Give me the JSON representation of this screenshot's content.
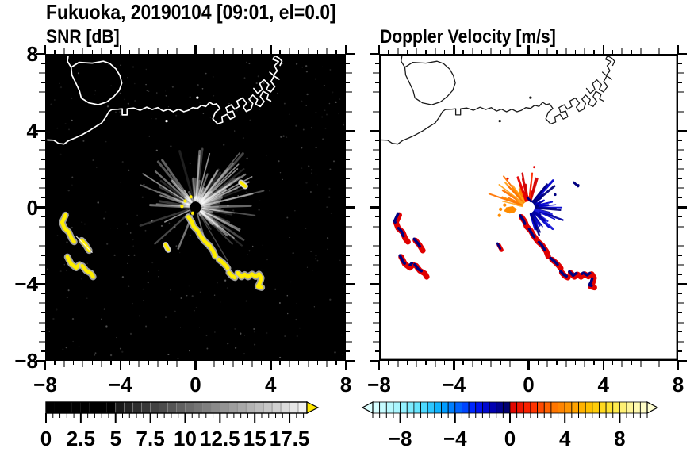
{
  "title": "Fukuoka, 20190104 [09:01, el=0.0]",
  "panels": {
    "snr": {
      "heading": "SNR [dB]"
    },
    "doppler": {
      "heading": "Doppler Velocity [m/s]"
    }
  },
  "axes": {
    "x_ticks": [
      "−8",
      "−4",
      "0",
      "4",
      "8"
    ],
    "x_tick_values": [
      -8,
      -4,
      0,
      4,
      8
    ],
    "y_ticks": [
      "8",
      "4",
      "0",
      "−4",
      "−8"
    ],
    "y_tick_values": [
      8,
      4,
      0,
      -4,
      -8
    ],
    "range": [
      -8,
      8
    ],
    "minor_step": 0.5,
    "medium_step": 1,
    "major_step": 4
  },
  "colorbars": {
    "snr": {
      "labels": [
        "0",
        "2.5",
        "5",
        "7.5",
        "10",
        "12.5",
        "15",
        "17.5"
      ],
      "label_values": [
        0,
        2.5,
        5,
        7.5,
        10,
        12.5,
        15,
        17.5
      ],
      "min": 0,
      "max": 18.75,
      "segments": 30,
      "solid_black_upto": 5,
      "scheme": "grayscale black to white",
      "over_arrow_color": "#FFE800"
    },
    "doppler": {
      "labels": [
        "−8",
        "−4",
        "0",
        "4",
        "8"
      ],
      "label_values": [
        -8,
        -4,
        0,
        4,
        8
      ],
      "min": -10,
      "max": 10,
      "segments": 40,
      "under_arrow_color": "#DCFFFF",
      "over_arrow_color": "#FFFFD2",
      "neg_stops": [
        [
          0,
          "#DCFFFF"
        ],
        [
          0.18,
          "#A8F6FF"
        ],
        [
          0.35,
          "#5CE2FF"
        ],
        [
          0.5,
          "#00AAFF"
        ],
        [
          0.63,
          "#0060FF"
        ],
        [
          0.75,
          "#0018FF"
        ],
        [
          0.87,
          "#0000B4"
        ],
        [
          1,
          "#000060"
        ]
      ],
      "pos_stops": [
        [
          0,
          "#DC0000"
        ],
        [
          0.15,
          "#FF2800"
        ],
        [
          0.3,
          "#FF6E00"
        ],
        [
          0.45,
          "#FF9C00"
        ],
        [
          0.6,
          "#FFC800"
        ],
        [
          0.75,
          "#FFE83C"
        ],
        [
          0.88,
          "#FFF59B"
        ],
        [
          1,
          "#FFFFD2"
        ]
      ]
    }
  },
  "chart_data": {
    "type": "heatmap",
    "title": "Fukuoka, 20190104 [09:01, el=0.0]",
    "site": "Fukuoka",
    "date": "20190104",
    "time": "09:01",
    "elevation_deg": 0.0,
    "x_range_km": [
      -8,
      8
    ],
    "y_range_km": [
      -8,
      8
    ],
    "radar_site_xy": [
      0,
      0
    ],
    "panels": [
      {
        "name": "SNR",
        "units": "dB",
        "background": "#000000",
        "colorbar_range": [
          0,
          18.75
        ],
        "echo_note": "yellow trails = saturated echoes > 18.75 dB with gray fringes; gray radial fan = ground clutter around radar site"
      },
      {
        "name": "Doppler Velocity",
        "units": "m/s",
        "background": "#FFFFFF",
        "colorbar_range": [
          -10,
          10
        ],
        "echo_note": "same trails as SNR: red ~ +1 m/s with navy ~ -1 m/s edges; fan: orange +3..6 m/s NW, red +1..3 m/s N, blue/navy -0.5..-3 m/s E-SE"
      }
    ],
    "map": {
      "region": "Hakata Bay coastline, Fukuoka",
      "coastline": {
        "island": [
          [
            -4.9,
            7.62
          ],
          [
            -5.5,
            7.52
          ],
          [
            -6.2,
            7.56
          ],
          [
            -6.62,
            7.3
          ],
          [
            -6.58,
            6.9
          ],
          [
            -6.38,
            6.5
          ],
          [
            -6.18,
            6.08
          ],
          [
            -6.08,
            5.7
          ],
          [
            -5.68,
            5.45
          ],
          [
            -5.18,
            5.35
          ],
          [
            -4.72,
            5.5
          ],
          [
            -4.35,
            5.78
          ],
          [
            -4.06,
            6.1
          ],
          [
            -3.92,
            6.48
          ],
          [
            -4.02,
            6.86
          ],
          [
            -4.22,
            7.2
          ],
          [
            -4.56,
            7.5
          ],
          [
            -4.9,
            7.62
          ]
        ],
        "spur": [
          [
            -6.62,
            7.3
          ],
          [
            -6.82,
            7.62
          ],
          [
            -6.76,
            8.0
          ]
        ],
        "main": [
          [
            -8,
            3.52
          ],
          [
            -7.55,
            3.5
          ],
          [
            -7.3,
            3.34
          ],
          [
            -7.0,
            3.3
          ],
          [
            -6.75,
            3.48
          ],
          [
            -6.4,
            3.62
          ],
          [
            -6.05,
            3.78
          ],
          [
            -5.65,
            4.0
          ],
          [
            -5.3,
            4.22
          ],
          [
            -5.0,
            4.4
          ],
          [
            -4.78,
            4.7
          ],
          [
            -4.6,
            5.0
          ],
          [
            -4.45,
            5.1
          ],
          [
            -4.1,
            5.12
          ],
          [
            -3.9,
            5.14
          ],
          [
            -3.9,
            4.82
          ],
          [
            -3.64,
            4.82
          ],
          [
            -3.64,
            5.14
          ],
          [
            -3.3,
            5.18
          ],
          [
            -2.95,
            5.06
          ],
          [
            -2.6,
            5.22
          ],
          [
            -2.3,
            5.1
          ],
          [
            -2.0,
            5.2
          ],
          [
            -1.72,
            5.02
          ],
          [
            -1.45,
            5.12
          ],
          [
            -1.18,
            4.98
          ],
          [
            -0.9,
            5.12
          ],
          [
            -0.62,
            4.98
          ],
          [
            -0.38,
            5.06
          ],
          [
            -0.15,
            5.2
          ],
          [
            0.1,
            5.16
          ],
          [
            0.32,
            5.32
          ],
          [
            0.55,
            5.26
          ],
          [
            0.75,
            5.48
          ],
          [
            0.95,
            5.36
          ],
          [
            1.12,
            5.4
          ]
        ],
        "harbor1": [
          [
            1.12,
            5.4
          ],
          [
            1.3,
            5.15
          ],
          [
            1.05,
            4.95
          ],
          [
            0.92,
            4.62
          ],
          [
            1.18,
            4.35
          ],
          [
            1.45,
            4.45
          ],
          [
            1.4,
            4.72
          ],
          [
            1.68,
            4.85
          ],
          [
            1.85,
            4.6
          ],
          [
            2.1,
            4.72
          ],
          [
            1.98,
            5.02
          ],
          [
            1.72,
            4.94
          ],
          [
            1.62,
            5.2
          ],
          [
            1.9,
            5.35
          ],
          [
            2.08,
            5.12
          ],
          [
            2.32,
            5.26
          ],
          [
            2.2,
            5.54
          ],
          [
            2.5,
            5.7
          ],
          [
            2.72,
            5.44
          ],
          [
            2.55,
            5.22
          ],
          [
            2.7,
            5.0
          ],
          [
            2.95,
            5.12
          ],
          [
            3.05,
            5.42
          ],
          [
            2.85,
            5.64
          ],
          [
            3.05,
            5.86
          ],
          [
            3.3,
            5.62
          ],
          [
            3.2,
            5.38
          ],
          [
            3.45,
            5.26
          ],
          [
            3.65,
            5.52
          ],
          [
            3.45,
            5.78
          ],
          [
            3.6,
            6.05
          ],
          [
            3.88,
            5.9
          ],
          [
            3.8,
            5.65
          ],
          [
            4.0,
            5.55
          ]
        ],
        "harbor2": [
          [
            3.1,
            6.2
          ],
          [
            3.3,
            5.95
          ],
          [
            3.55,
            6.15
          ],
          [
            3.42,
            6.45
          ],
          [
            3.65,
            6.65
          ],
          [
            3.9,
            6.4
          ],
          [
            3.78,
            6.15
          ],
          [
            4.0,
            6.02
          ],
          [
            4.22,
            6.3
          ],
          [
            4.02,
            6.56
          ],
          [
            4.18,
            6.85
          ],
          [
            4.45,
            6.68
          ]
        ],
        "harbor3": [
          [
            3.95,
            7.05
          ],
          [
            4.15,
            6.88
          ],
          [
            4.35,
            7.12
          ],
          [
            4.2,
            7.38
          ],
          [
            4.42,
            7.6
          ],
          [
            4.12,
            7.72
          ],
          [
            4.22,
            7.9
          ],
          [
            4.45,
            7.78
          ],
          [
            4.6,
            7.62
          ],
          [
            4.5,
            7.4
          ]
        ],
        "islet_dots": [
          [
            0.1,
            5.72
          ],
          [
            -1.54,
            4.5
          ]
        ]
      }
    },
    "echo_trails": {
      "snr_core_color": "#FFEE00",
      "snr_halo_color": "#C8C8C8",
      "doppler_pos_color": "#E00000",
      "doppler_neg_color": "#000080",
      "chains": [
        [
          [
            -6.92,
            -0.4
          ],
          [
            -7.1,
            -0.78
          ],
          [
            -6.98,
            -1.08
          ],
          [
            -6.74,
            -1.3
          ],
          [
            -6.6,
            -1.62
          ],
          [
            -6.46,
            -1.8
          ]
        ],
        [
          [
            -6.06,
            -1.72
          ],
          [
            -5.85,
            -1.95
          ],
          [
            -5.66,
            -2.25
          ]
        ],
        [
          [
            -6.82,
            -2.58
          ],
          [
            -6.62,
            -2.95
          ],
          [
            -6.35,
            -3.15
          ],
          [
            -6.18,
            -2.98
          ]
        ],
        [
          [
            -6.02,
            -3.05
          ],
          [
            -5.82,
            -3.3
          ],
          [
            -5.55,
            -3.45
          ],
          [
            -5.45,
            -3.62
          ]
        ],
        [
          [
            -0.38,
            -0.5
          ],
          [
            -0.2,
            -0.75
          ],
          [
            -0.1,
            -1.0
          ],
          [
            0.12,
            -1.22
          ],
          [
            0.28,
            -1.5
          ],
          [
            0.5,
            -1.78
          ],
          [
            0.75,
            -2.0
          ],
          [
            0.95,
            -2.3
          ],
          [
            1.05,
            -2.55
          ]
        ],
        [
          [
            1.25,
            -2.72
          ],
          [
            1.45,
            -2.88
          ],
          [
            1.62,
            -3.05
          ],
          [
            1.72,
            -3.18
          ]
        ],
        [
          [
            1.78,
            -3.4
          ],
          [
            1.95,
            -3.58
          ],
          [
            2.1,
            -3.66
          ]
        ],
        [
          [
            2.25,
            -3.42
          ],
          [
            2.45,
            -3.62
          ],
          [
            2.62,
            -3.5
          ],
          [
            2.8,
            -3.62
          ],
          [
            3.0,
            -3.48
          ],
          [
            3.2,
            -3.6
          ],
          [
            3.38,
            -3.48
          ],
          [
            3.5,
            -3.68
          ],
          [
            3.42,
            -3.95
          ],
          [
            3.32,
            -4.12
          ],
          [
            3.52,
            -4.18
          ]
        ]
      ],
      "dashes": [
        [
          [
            -1.6,
            -1.95
          ],
          [
            -1.45,
            -2.22
          ]
        ],
        [
          [
            2.42,
            1.3
          ],
          [
            2.65,
            1.1
          ]
        ]
      ],
      "white_streak": [
        [
          -6.35,
          -1.5
        ],
        [
          -5.5,
          -2.35
        ]
      ]
    },
    "snr_clutter_fan": {
      "seed": 11,
      "count": 120,
      "color": "#FFFFFF",
      "bright_rays": [
        {
          "angle_deg": 75,
          "len": 2.9
        },
        {
          "angle_deg": 28,
          "len": 3.4
        },
        {
          "angle_deg": 42,
          "len": 3.0
        },
        {
          "angle_deg": -38,
          "len": 2.6
        },
        {
          "angle_deg": 148,
          "len": 3.3
        },
        {
          "angle_deg": 205,
          "len": 1.8
        }
      ],
      "center_specks": [
        [
          -0.55,
          0.33
        ],
        [
          -0.25,
          0.55
        ],
        [
          -0.72,
          0.05
        ],
        [
          -0.15,
          -0.3
        ]
      ]
    },
    "noise": {
      "seed": 97,
      "count": 320
    },
    "doppler_fan": {
      "sectors": [
        {
          "name": "orange-away",
          "angles": [
            112,
            170
          ],
          "count": 30,
          "len": [
            0.45,
            2.35
          ],
          "colors": [
            "#FF8C00",
            "#FFA520",
            "#FF7400",
            "#E8820A"
          ],
          "seed": 21
        },
        {
          "name": "red-away",
          "angles": [
            70,
            112
          ],
          "count": 20,
          "len": [
            0.5,
            2.0
          ],
          "colors": [
            "#E60000",
            "#FF2A00",
            "#D40000"
          ],
          "seed": 22
        },
        {
          "name": "blue-toward",
          "angles": [
            -75,
            58
          ],
          "count": 72,
          "len": [
            0.35,
            1.95
          ],
          "colors": [
            "#0000A0",
            "#0000CD",
            "#1E1EDC",
            "#000080"
          ],
          "seed": 23
        }
      ],
      "west_blob": {
        "polygon": [
          [
            -0.62,
            -0.1
          ],
          [
            -0.85,
            0.06
          ],
          [
            -1.2,
            0.0
          ],
          [
            -1.32,
            -0.2
          ],
          [
            -1.02,
            -0.32
          ],
          [
            -0.78,
            -0.28
          ]
        ],
        "color": "#FF8C00",
        "dots": [
          [
            -1.5,
            -0.1
          ],
          [
            -1.56,
            -0.42
          ],
          [
            -1.28,
            0.12
          ]
        ]
      },
      "stray_navy_dots": [
        [
          1.42,
          0.66
        ],
        [
          2.65,
          1.15
        ]
      ],
      "stray_red_dots": [
        [
          -1.12,
          1.5
        ],
        [
          0.3,
          2.1
        ]
      ],
      "center_squiggle": [
        [
          -0.05,
          0.5
        ],
        [
          0.12,
          0.32
        ]
      ]
    }
  }
}
